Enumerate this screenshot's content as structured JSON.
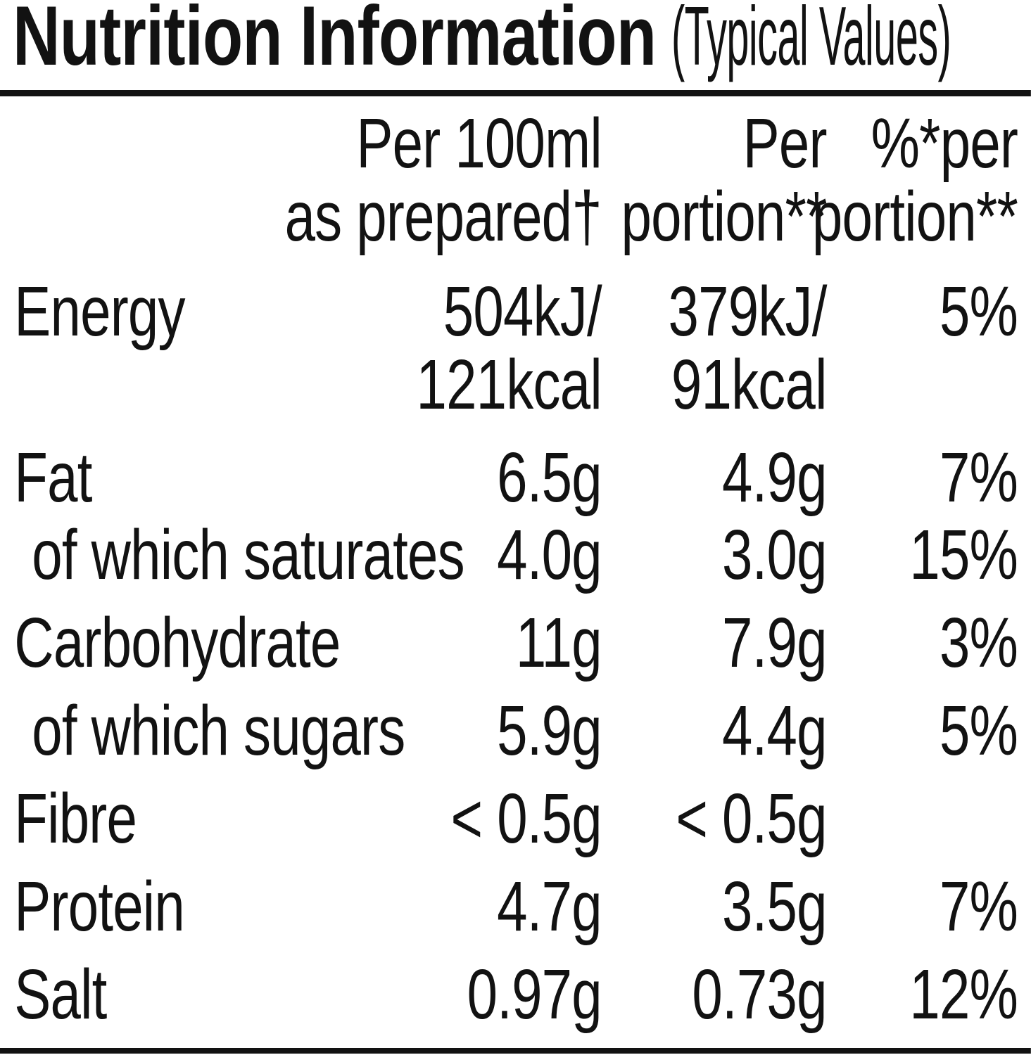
{
  "title": {
    "main": "Nutrition Information",
    "suffix": "(Typical Values)"
  },
  "colors": {
    "text": "#121212",
    "background": "#ffffff",
    "rule": "#121212"
  },
  "table": {
    "column_headers": [
      {
        "text": "Per 100ml\nas prepared†"
      },
      {
        "text": "Per\nportion**"
      },
      {
        "text": "%*per\nportion**"
      }
    ],
    "rows": [
      {
        "label": "Energy",
        "per100": "504kJ/\n121kcal",
        "perPortion": "379kJ/\n91kcal",
        "pct": "5%"
      },
      {
        "label": "Fat",
        "per100": "6.5g",
        "perPortion": "4.9g",
        "pct": "7%"
      },
      {
        "label": "of which saturates",
        "per100": "4.0g",
        "perPortion": "3.0g",
        "pct": "15%"
      },
      {
        "label": "Carbohydrate",
        "per100": "11g",
        "perPortion": "7.9g",
        "pct": "3%"
      },
      {
        "label": "of which sugars",
        "per100": "5.9g",
        "perPortion": "4.4g",
        "pct": "5%"
      },
      {
        "label": "Fibre",
        "per100": "< 0.5g",
        "perPortion": "< 0.5g",
        "pct": ""
      },
      {
        "label": "Protein",
        "per100": "4.7g",
        "perPortion": "3.5g",
        "pct": "7%"
      },
      {
        "label": "Salt",
        "per100": "0.97g",
        "perPortion": "0.73g",
        "pct": "12%"
      }
    ]
  }
}
